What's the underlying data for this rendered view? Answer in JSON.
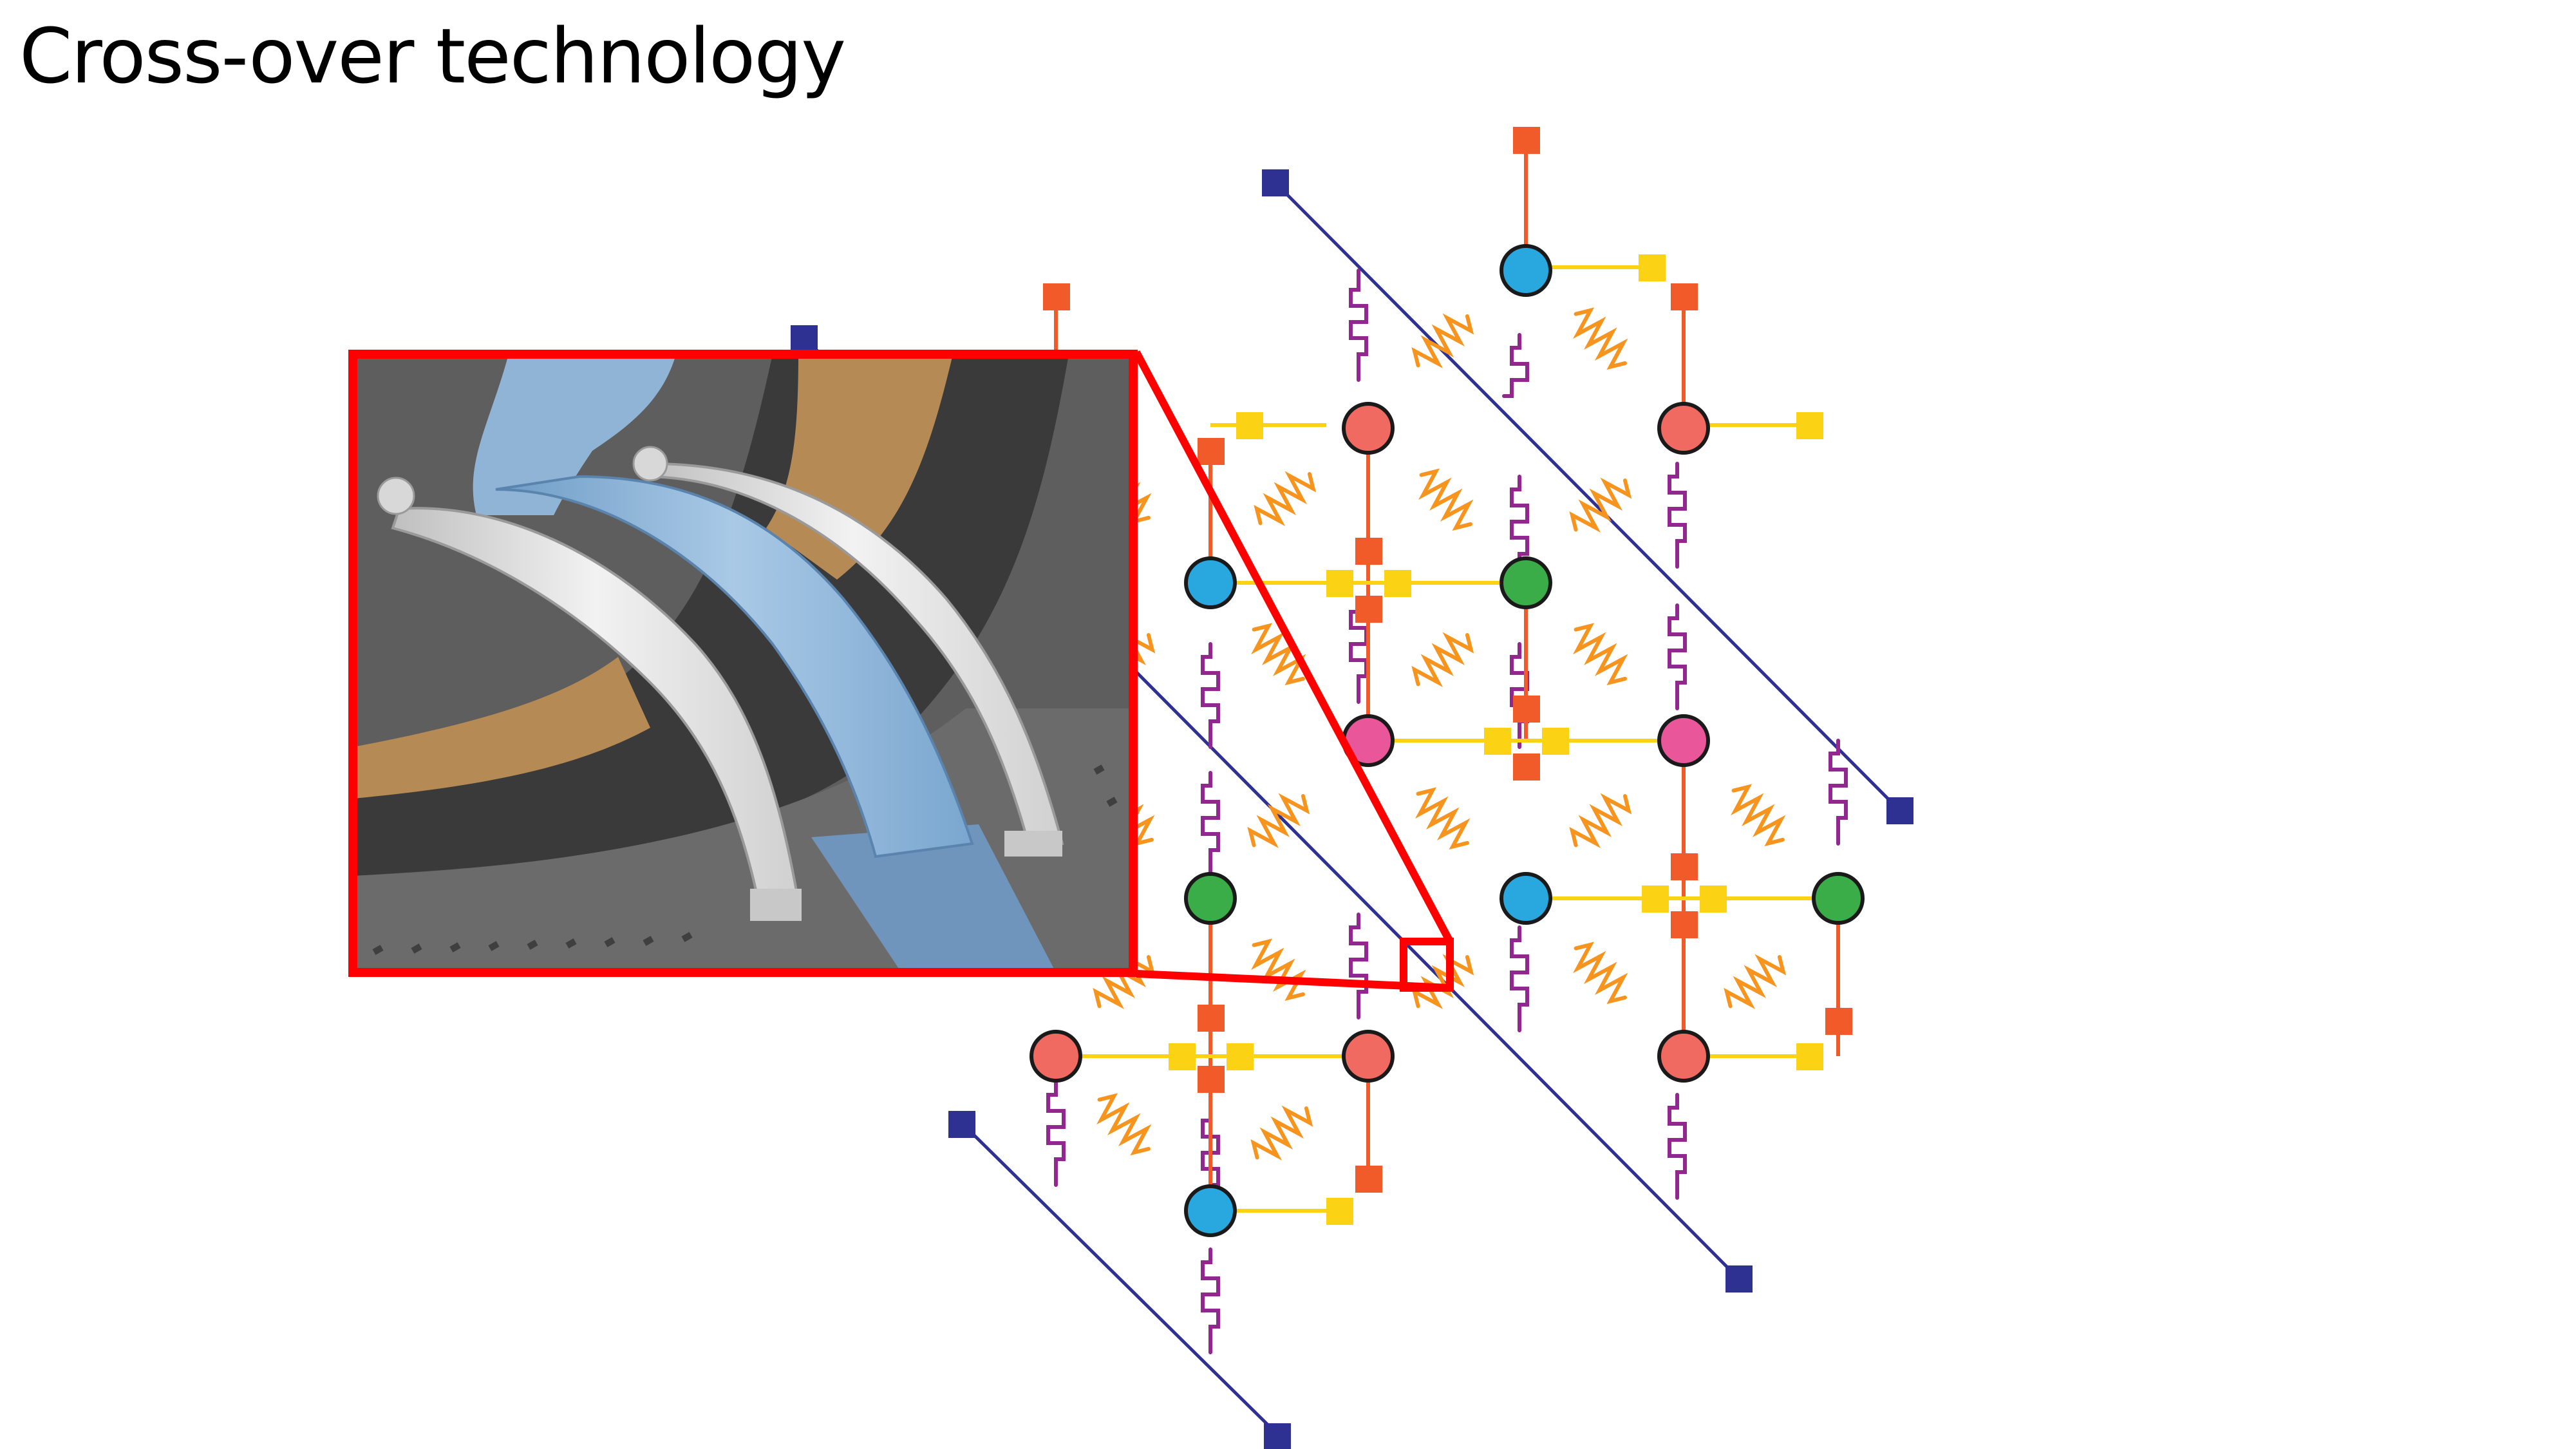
{
  "slide": {
    "title": "Cross-over technology"
  },
  "palette": {
    "background": "#ffffff",
    "qubit_blue": "#29a8e0",
    "qubit_red": "#f06a62",
    "qubit_green": "#3aac48",
    "qubit_pink": "#e9569a",
    "drive_line": "#f15a29",
    "readout_line": "#fcd214",
    "flux_line": "#2e3192",
    "coupler": "#f7941d",
    "resonator": "#92278f",
    "zoom_frame": "#ff0000",
    "sem_substrate": "#606060",
    "sem_bridge": "#e6e6e6",
    "sem_blue": "#8fb4d6",
    "sem_orange": "#b58a55"
  },
  "icons": {
    "qubit": "circle-node",
    "port": "square-pad",
    "zoom": "magnified-inset"
  }
}
